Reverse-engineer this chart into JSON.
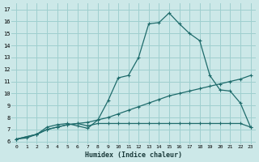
{
  "xlabel": "Humidex (Indice chaleur)",
  "bg_color": "#cce8e8",
  "grid_color": "#9fcfcf",
  "line_color": "#1e6b6b",
  "xlim": [
    -0.5,
    23.5
  ],
  "ylim": [
    5.8,
    17.5
  ],
  "xticks": [
    0,
    1,
    2,
    3,
    4,
    5,
    6,
    7,
    8,
    9,
    10,
    11,
    12,
    13,
    14,
    15,
    16,
    17,
    18,
    19,
    20,
    21,
    22,
    23
  ],
  "yticks": [
    6,
    7,
    8,
    9,
    10,
    11,
    12,
    13,
    14,
    15,
    16,
    17
  ],
  "line1_x": [
    0,
    1,
    2,
    3,
    4,
    5,
    6,
    7,
    8,
    9,
    10,
    11,
    12,
    13,
    14,
    15,
    16,
    17,
    18,
    19,
    20,
    21,
    22,
    23
  ],
  "line1_y": [
    6.2,
    6.3,
    6.6,
    7.2,
    7.4,
    7.5,
    7.3,
    7.1,
    7.8,
    9.4,
    11.3,
    11.5,
    13.0,
    15.8,
    15.9,
    16.7,
    15.8,
    15.0,
    14.4,
    11.5,
    10.3,
    10.2,
    9.2,
    7.2
  ],
  "line2_x": [
    0,
    2,
    3,
    4,
    5,
    6,
    7,
    8,
    9,
    10,
    11,
    12,
    13,
    14,
    15,
    16,
    17,
    18,
    19,
    20,
    21,
    22,
    23
  ],
  "line2_y": [
    6.2,
    6.6,
    7.0,
    7.2,
    7.4,
    7.5,
    7.6,
    7.8,
    8.0,
    8.3,
    8.6,
    8.9,
    9.2,
    9.5,
    9.8,
    10.0,
    10.2,
    10.4,
    10.6,
    10.8,
    11.0,
    11.2,
    11.5
  ],
  "line3_x": [
    0,
    2,
    3,
    4,
    5,
    6,
    7,
    8,
    9,
    10,
    11,
    12,
    13,
    14,
    15,
    16,
    17,
    18,
    19,
    20,
    21,
    22,
    23
  ],
  "line3_y": [
    6.2,
    6.6,
    7.0,
    7.2,
    7.4,
    7.5,
    7.3,
    7.5,
    7.5,
    7.5,
    7.5,
    7.5,
    7.5,
    7.5,
    7.5,
    7.5,
    7.5,
    7.5,
    7.5,
    7.5,
    7.5,
    7.5,
    7.2
  ]
}
